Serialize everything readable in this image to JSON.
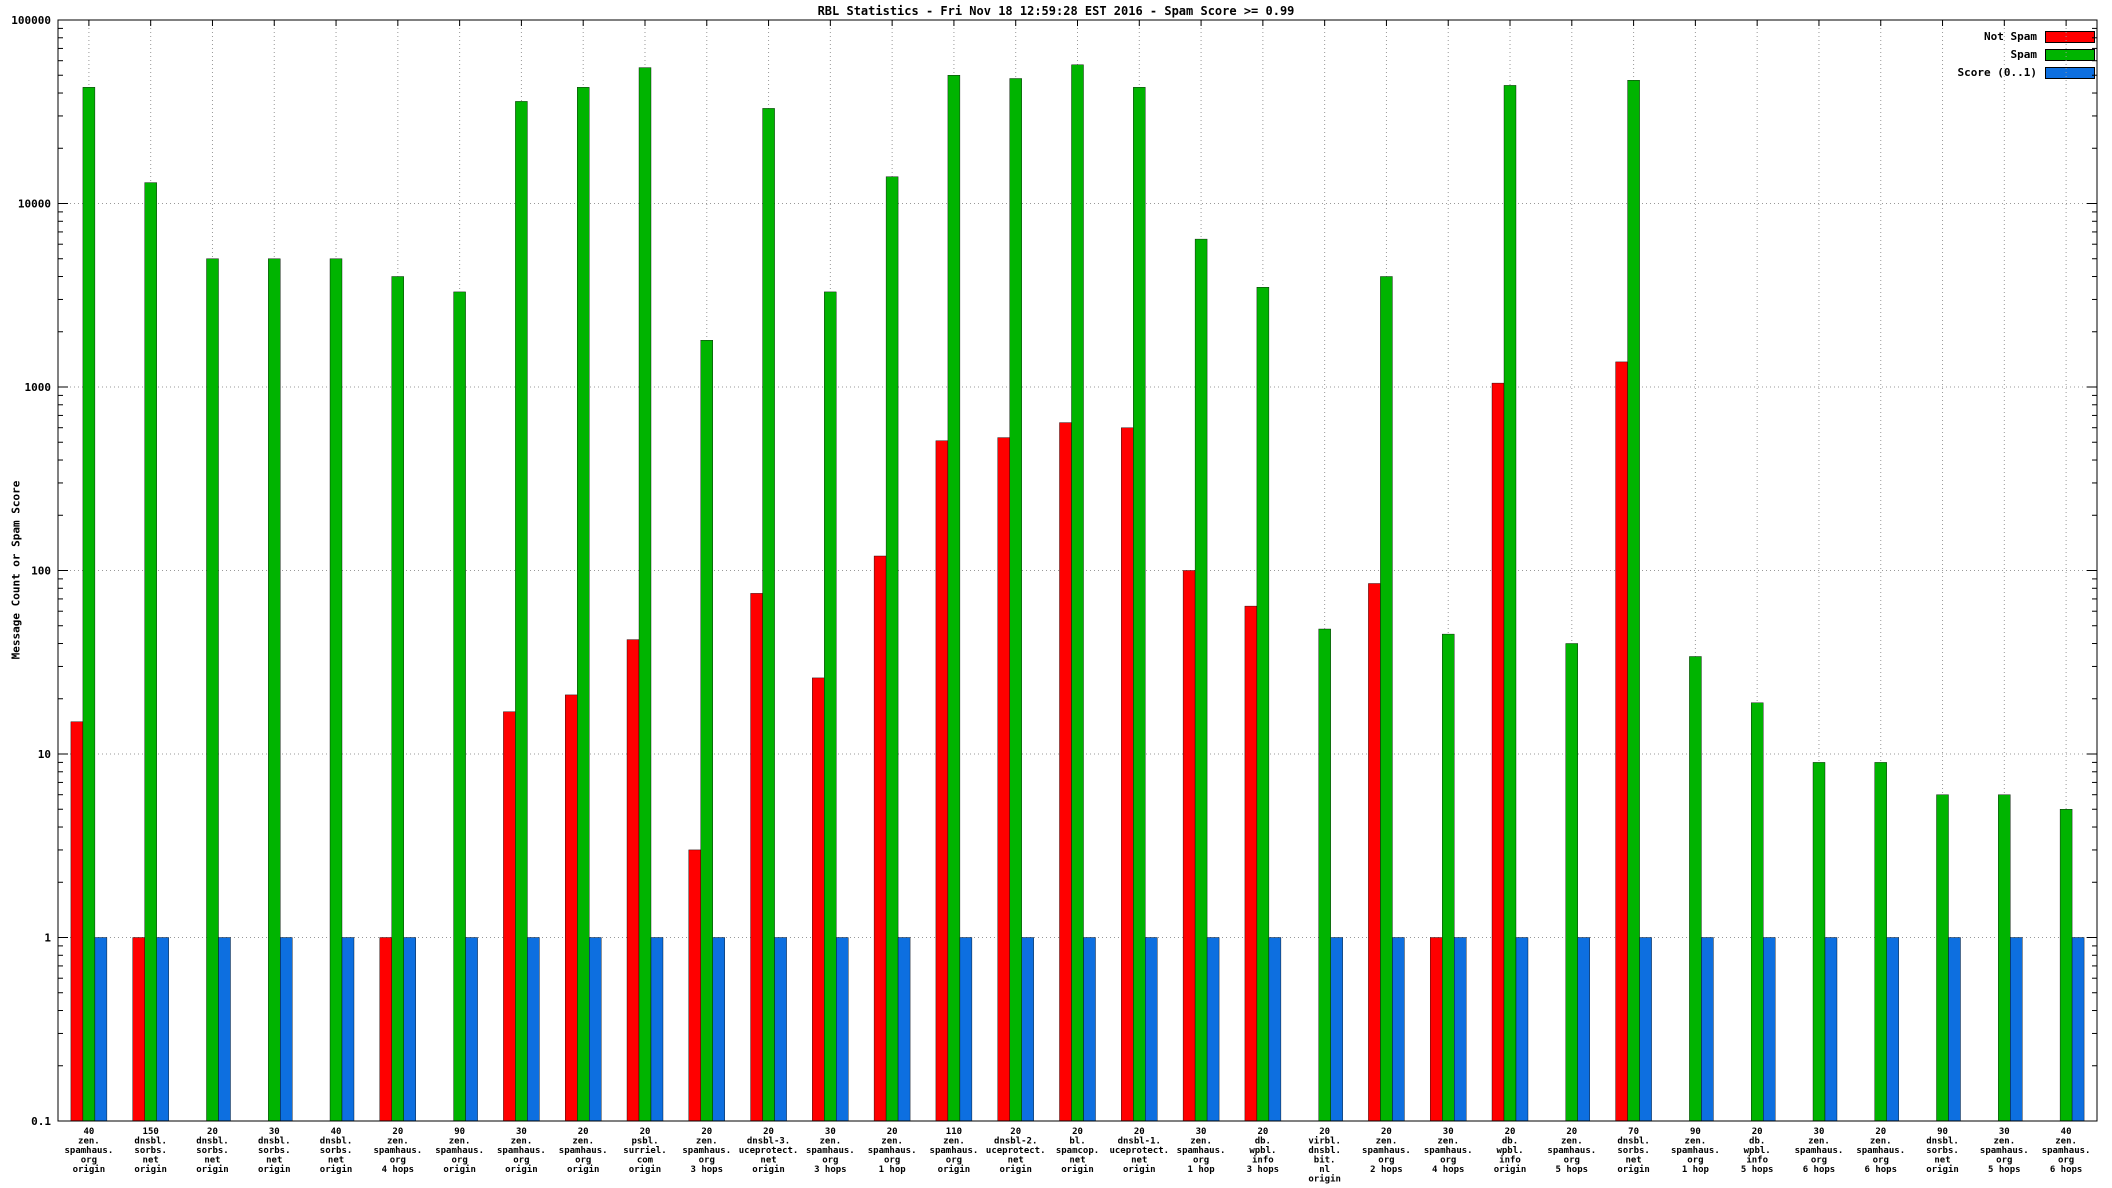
{
  "chart_data": {
    "type": "bar",
    "title": "RBL Statistics - Fri Nov 18 12:59:28 EST 2016 - Spam Score >= 0.99",
    "ylabel": "Message Count or Spam Score",
    "yscale": "log",
    "ylim": [
      0.1,
      100000
    ],
    "grid": true,
    "legend_position": "top-right",
    "yticks": [
      {
        "v": 0.1,
        "label": "0.1"
      },
      {
        "v": 1,
        "label": "1"
      },
      {
        "v": 10,
        "label": "10"
      },
      {
        "v": 100,
        "label": "100"
      },
      {
        "v": 1000,
        "label": "1000"
      },
      {
        "v": 10000,
        "label": "10000"
      },
      {
        "v": 100000,
        "label": "100000"
      }
    ],
    "categories": [
      [
        "40",
        "zen.",
        "spamhaus.",
        "org",
        "origin"
      ],
      [
        "150",
        "dnsbl.",
        "sorbs.",
        "net",
        "origin"
      ],
      [
        "20",
        "dnsbl.",
        "sorbs.",
        "net",
        "origin"
      ],
      [
        "30",
        "dnsbl.",
        "sorbs.",
        "net",
        "origin"
      ],
      [
        "40",
        "dnsbl.",
        "sorbs.",
        "net",
        "origin"
      ],
      [
        "20",
        "zen.",
        "spamhaus.",
        "org",
        "4 hops"
      ],
      [
        "90",
        "zen.",
        "spamhaus.",
        "org",
        "origin"
      ],
      [
        "30",
        "zen.",
        "spamhaus.",
        "org",
        "origin"
      ],
      [
        "20",
        "zen.",
        "spamhaus.",
        "org",
        "origin"
      ],
      [
        "20",
        "psbl.",
        "surriel.",
        "com",
        "origin"
      ],
      [
        "20",
        "zen.",
        "spamhaus.",
        "org",
        "3 hops"
      ],
      [
        "20",
        "dnsbl-3.",
        "uceprotect.",
        "net",
        "origin"
      ],
      [
        "30",
        "zen.",
        "spamhaus.",
        "org",
        "3 hops"
      ],
      [
        "20",
        "zen.",
        "spamhaus.",
        "org",
        "1 hop"
      ],
      [
        "110",
        "zen.",
        "spamhaus.",
        "org",
        "origin"
      ],
      [
        "20",
        "dnsbl-2.",
        "uceprotect.",
        "net",
        "origin"
      ],
      [
        "20",
        "bl.",
        "spamcop.",
        "net",
        "origin"
      ],
      [
        "20",
        "dnsbl-1.",
        "uceprotect.",
        "net",
        "origin"
      ],
      [
        "30",
        "zen.",
        "spamhaus.",
        "org",
        "1 hop"
      ],
      [
        "20",
        "db.",
        "wpbl.",
        "info",
        "3 hops"
      ],
      [
        "20",
        "virbl.",
        "dnsbl.",
        "bit.",
        "nl",
        "origin"
      ],
      [
        "20",
        "zen.",
        "spamhaus.",
        "org",
        "2 hops"
      ],
      [
        "30",
        "zen.",
        "spamhaus.",
        "org",
        "4 hops"
      ],
      [
        "20",
        "db.",
        "wpbl.",
        "info",
        "origin"
      ],
      [
        "20",
        "zen.",
        "spamhaus.",
        "org",
        "5 hops"
      ],
      [
        "70",
        "dnsbl.",
        "sorbs.",
        "net",
        "origin"
      ],
      [
        "90",
        "zen.",
        "spamhaus.",
        "org",
        "1 hop"
      ],
      [
        "20",
        "db.",
        "wpbl.",
        "info",
        "5 hops"
      ],
      [
        "30",
        "zen.",
        "spamhaus.",
        "org",
        "6 hops"
      ],
      [
        "20",
        "zen.",
        "spamhaus.",
        "org",
        "6 hops"
      ],
      [
        "90",
        "dnsbl.",
        "sorbs.",
        "net",
        "origin"
      ],
      [
        "30",
        "zen.",
        "spamhaus.",
        "org",
        "5 hops"
      ],
      [
        "40",
        "zen.",
        "spamhaus.",
        "org",
        "6 hops"
      ]
    ],
    "series": [
      {
        "key": "not-spam",
        "name": "Not Spam",
        "color": "#ff0000",
        "values": [
          15,
          1,
          0,
          0,
          0,
          1,
          0,
          17,
          21,
          42,
          3,
          75,
          26,
          120,
          510,
          530,
          640,
          600,
          100,
          64,
          0,
          85,
          1,
          1050,
          0,
          1370,
          0,
          0,
          0,
          0,
          0,
          0,
          0
        ]
      },
      {
        "key": "spam",
        "name": "Spam",
        "color": "#00b400",
        "values": [
          43000,
          13000,
          5000,
          5000,
          5000,
          4000,
          3300,
          36000,
          43000,
          55000,
          1800,
          33000,
          3300,
          14000,
          50000,
          48000,
          57000,
          43000,
          6400,
          3500,
          48,
          4000,
          45,
          44000,
          40,
          47000,
          34,
          19,
          9,
          9,
          6,
          6,
          5
        ]
      },
      {
        "key": "score",
        "name": "Score (0..1)",
        "color": "#0d6fe0",
        "values": [
          1,
          1,
          1,
          1,
          1,
          1,
          1,
          1,
          1,
          1,
          1,
          1,
          1,
          1,
          1,
          1,
          1,
          1,
          1,
          1,
          1,
          1,
          1,
          1,
          1,
          1,
          1,
          1,
          1,
          1,
          1,
          1,
          1
        ]
      }
    ]
  }
}
